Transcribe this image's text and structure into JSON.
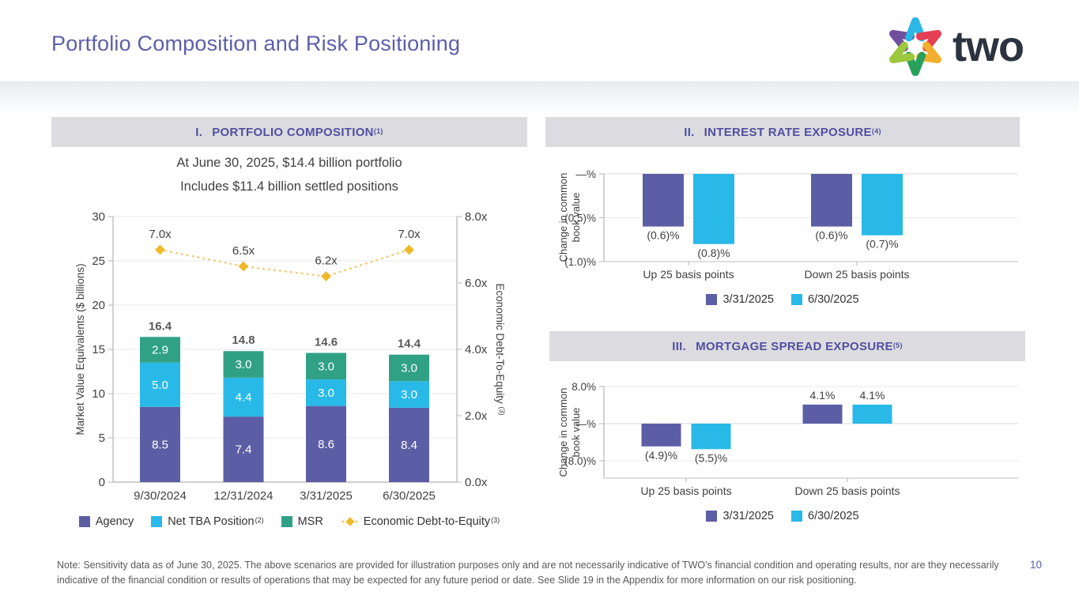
{
  "slide": {
    "title": "Portfolio Composition and Risk Positioning",
    "page_number": "10",
    "footnote": "Note: Sensitivity data as of June 30, 2025. The above scenarios are provided for illustration purposes only and are not necessarily indicative of TWO’s financial condition and operating results, nor are they necessarily indicative of the financial condition or results of operations that may be expected for any future period or date. See Slide 19 in the Appendix for more information on our risk positioning."
  },
  "logo": {
    "word": "two",
    "segment_colors": [
      "#6F4F9E",
      "#2BB7E5",
      "#E63E53",
      "#F2AE2C",
      "#27A05B",
      "#9DC73D"
    ]
  },
  "colors": {
    "purple": "#5C5EA5",
    "cyan": "#29B9E8",
    "green": "#31A186",
    "line_yellow": "#F3CC74",
    "marker_yellow": "#EFB929",
    "axis": "#B5B5B5",
    "grid": "#E9E9E9",
    "label_dark": "#404040",
    "total_gray": "#595959"
  },
  "panels": [
    {
      "numeral": "I.",
      "title": "PORTFOLIO COMPOSITION",
      "sup": "(1)",
      "subtitle_line1": "At June 30, 2025, $14.4 billion portfolio",
      "subtitle_line2": "Includes $11.4 billion settled positions"
    },
    {
      "numeral": "II.",
      "title": "INTEREST RATE EXPOSURE",
      "sup": "(4)"
    },
    {
      "numeral": "III.",
      "title": "MORTGAGE SPREAD EXPOSURE",
      "sup": "(5)"
    }
  ],
  "chart_data": [
    {
      "id": "portfolio-composition",
      "type": "bar",
      "stacked": true,
      "categories": [
        "9/30/2024",
        "12/31/2024",
        "3/31/2025",
        "6/30/2025"
      ],
      "series": [
        {
          "name": "Agency",
          "color_key": "purple",
          "values": [
            8.5,
            7.4,
            8.6,
            8.4
          ]
        },
        {
          "name": "Net TBA Position",
          "sup": "(2)",
          "color_key": "cyan",
          "values": [
            5.0,
            4.4,
            3.0,
            3.0
          ]
        },
        {
          "name": "MSR",
          "color_key": "green",
          "values": [
            2.9,
            3.0,
            3.0,
            3.0
          ]
        }
      ],
      "totals": [
        "16.4",
        "14.8",
        "14.6",
        "14.4"
      ],
      "line_series": {
        "name": "Economic Debt-to-Equity",
        "sup": "(3)",
        "values": [
          7.0,
          6.5,
          6.2,
          7.0
        ],
        "labels": [
          "7.0x",
          "6.5x",
          "6.2x",
          "7.0x"
        ]
      },
      "ylabel_left": "Market Value Equivalents ($ billions)",
      "ylabel_right": "Economic Debt-To-Equity",
      "ylabel_right_sup": "(3)",
      "yleft": {
        "min": 0,
        "max": 30,
        "ticks": [
          0,
          5,
          10,
          15,
          20,
          25,
          30
        ]
      },
      "yright": {
        "min": 0,
        "max": 8,
        "ticks": [
          {
            "v": 0,
            "label": "0.0x"
          },
          {
            "v": 2,
            "label": "2.0x"
          },
          {
            "v": 4,
            "label": "4.0x"
          },
          {
            "v": 6,
            "label": "6.0x"
          },
          {
            "v": 8,
            "label": "8.0x"
          }
        ]
      },
      "grid": true,
      "legend_position": "bottom"
    },
    {
      "id": "interest-rate-exposure",
      "type": "bar",
      "categories": [
        "Up 25 basis points",
        "Down 25 basis points"
      ],
      "series": [
        {
          "name": "3/31/2025",
          "color_key": "purple",
          "values": [
            -0.6,
            -0.6
          ],
          "labels": [
            "(0.6)%",
            "(0.6)%"
          ]
        },
        {
          "name": "6/30/2025",
          "color_key": "cyan",
          "values": [
            -0.8,
            -0.7
          ],
          "labels": [
            "(0.8)%",
            "(0.7)%"
          ]
        }
      ],
      "ylabel": "Change in common book value",
      "ylabel_lines": [
        "Change in common",
        "book value"
      ],
      "ylim": [
        -1.0,
        0
      ],
      "yticks": [
        {
          "v": 0,
          "label": "—%"
        },
        {
          "v": -0.5,
          "label": "(0.5)%"
        },
        {
          "v": -1.0,
          "label": "(1.0)%"
        }
      ],
      "grid": true,
      "legend_position": "bottom"
    },
    {
      "id": "mortgage-spread-exposure",
      "type": "bar",
      "categories": [
        "Up 25 basis points",
        "Down 25 basis points"
      ],
      "series": [
        {
          "name": "3/31/2025",
          "color_key": "purple",
          "values": [
            -4.9,
            4.1
          ],
          "labels": [
            "(4.9)%",
            "4.1%"
          ]
        },
        {
          "name": "6/30/2025",
          "color_key": "cyan",
          "values": [
            -5.5,
            4.1
          ],
          "labels": [
            "(5.5)%",
            "4.1%"
          ]
        }
      ],
      "ylabel": "Change in common book value",
      "ylabel_lines": [
        "Change in common",
        "book value"
      ],
      "ylim": [
        -11.7,
        8
      ],
      "yticks": [
        {
          "v": 8,
          "label": "8.0%"
        },
        {
          "v": 0,
          "label": "—%"
        },
        {
          "v": -8,
          "label": "(8.0)%"
        }
      ],
      "grid": true,
      "legend_position": "bottom"
    }
  ]
}
